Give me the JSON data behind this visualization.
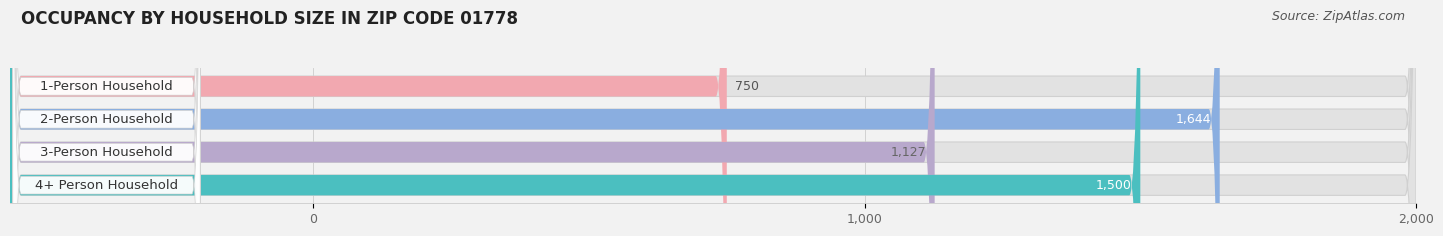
{
  "title": "OCCUPANCY BY HOUSEHOLD SIZE IN ZIP CODE 01778",
  "source": "Source: ZipAtlas.com",
  "categories": [
    "1-Person Household",
    "2-Person Household",
    "3-Person Household",
    "4+ Person Household"
  ],
  "values": [
    750,
    1644,
    1127,
    1500
  ],
  "bar_colors": [
    "#f2a8b0",
    "#8aaee0",
    "#b8a8cc",
    "#4bbfc0"
  ],
  "value_colors": [
    "#666666",
    "#ffffff",
    "#666666",
    "#ffffff"
  ],
  "xlim": [
    0,
    2000
  ],
  "xticks": [
    0,
    1000,
    2000
  ],
  "xticklabels": [
    "0",
    "1,000",
    "2,000"
  ],
  "bg_color": "#f2f2f2",
  "bar_bg_color": "#e2e2e2",
  "title_fontsize": 12,
  "source_fontsize": 9,
  "label_fontsize": 9.5,
  "value_fontsize": 9,
  "bar_height": 0.62,
  "figsize": [
    14.06,
    2.33
  ],
  "dpi": 100
}
